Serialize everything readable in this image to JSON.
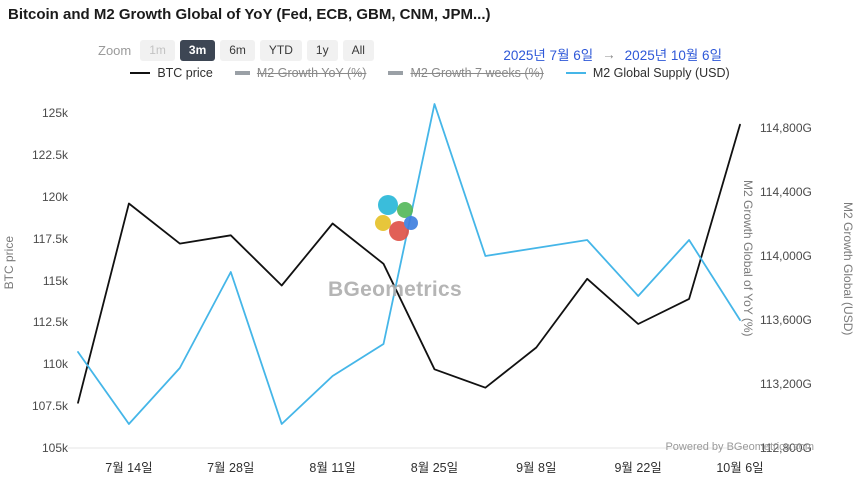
{
  "title": "Bitcoin and M2 Growth Global of YoY (Fed, ECB, GBM, CNM, JPM...)",
  "toolbar": {
    "zoom_label": "Zoom",
    "buttons": [
      {
        "label": "1m",
        "state": "disabled"
      },
      {
        "label": "3m",
        "state": "active"
      },
      {
        "label": "6m",
        "state": "default"
      },
      {
        "label": "YTD",
        "state": "default"
      },
      {
        "label": "1y",
        "state": "default"
      },
      {
        "label": "All",
        "state": "default"
      }
    ],
    "date_from": "2025년 7월 6일",
    "date_arrow": "→",
    "date_to": "2025년 10월 6일"
  },
  "legend": [
    {
      "label": "BTC price",
      "color": "#111111",
      "style": "line",
      "active": true
    },
    {
      "label": "M2 Growth YoY (%)",
      "color": "#9aa0a6",
      "style": "thick",
      "active": false
    },
    {
      "label": "M2 Growth 7 weeks (%)",
      "color": "#9aa0a6",
      "style": "thick",
      "active": false
    },
    {
      "label": "M2 Global Supply (USD)",
      "color": "#45b6e8",
      "style": "line",
      "active": true
    }
  ],
  "left_axis": {
    "title": "BTC price",
    "ticks": [
      "125k",
      "122.5k",
      "120k",
      "117.5k",
      "115k",
      "112.5k",
      "110k",
      "107.5k",
      "105k"
    ]
  },
  "right_axis": {
    "title_inner": "M2 Growth Global of YoY (%)",
    "title_outer": "M2 Growth Global (USD)",
    "ticks": [
      "114,800G",
      "114,400G",
      "114,000G",
      "113,600G",
      "113,200G",
      "112,800G"
    ]
  },
  "x_axis": {
    "ticks": [
      "7월 14일",
      "7월 28일",
      "8월 11일",
      "8월 25일",
      "9월 8일",
      "9월 22일",
      "10월 6일"
    ]
  },
  "watermark": {
    "text": "BGeometrics"
  },
  "footer": {
    "powered_by": "Powered by BGeometrics.com"
  },
  "chart_data": {
    "type": "line",
    "x": [
      "7월 6일",
      "7월 14일",
      "7월 21일",
      "7월 28일",
      "8월 4일",
      "8월 11일",
      "8월 18일",
      "8월 25일",
      "9월 1일",
      "9월 8일",
      "9월 15일",
      "9월 22일",
      "9월 29일",
      "10월 6일"
    ],
    "series": [
      {
        "name": "BTC price",
        "axis": "left",
        "color": "#111111",
        "unit": "thousand USD",
        "values": [
          107.7,
          119.6,
          117.2,
          117.7,
          114.7,
          118.4,
          116.0,
          109.7,
          108.6,
          111.0,
          115.1,
          112.4,
          113.9,
          124.3
        ]
      },
      {
        "name": "M2 Global Supply (USD)",
        "axis": "right",
        "color": "#45b6e8",
        "unit": "G USD",
        "values": [
          113400,
          112950,
          113300,
          113900,
          112950,
          113250,
          113450,
          114950,
          114000,
          114050,
          114100,
          113750,
          114100,
          113600
        ]
      }
    ],
    "left_ylim": [
      105,
      125
    ],
    "right_ylim": [
      112800,
      114800
    ],
    "grid": false,
    "legend_position": "top"
  }
}
